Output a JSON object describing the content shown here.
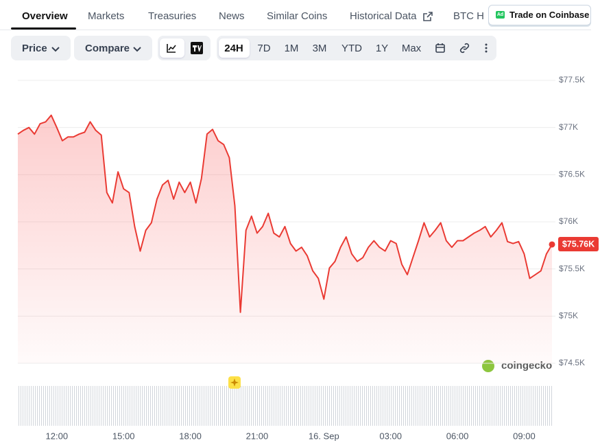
{
  "tabs": [
    "Overview",
    "Markets",
    "Treasuries",
    "News",
    "Similar Coins",
    "Historical Data",
    "BTC H"
  ],
  "ad_badge": "Ad",
  "trade_button": "Trade on Coinbase",
  "toolbar": {
    "price": "Price",
    "compare": "Compare",
    "ranges": [
      "24H",
      "7D",
      "1M",
      "3M",
      "YTD",
      "1Y",
      "Max"
    ]
  },
  "watermark": "coingecko",
  "chart_data": {
    "type": "line",
    "color": "#ea3a33",
    "grid": true,
    "ylim": [
      74500,
      77500
    ],
    "yticks": [
      {
        "value": 74500,
        "label": "$74.5K"
      },
      {
        "value": 75000,
        "label": "$75K"
      },
      {
        "value": 75500,
        "label": "$75.5K"
      },
      {
        "value": 76000,
        "label": "$76K"
      },
      {
        "value": 76500,
        "label": "$76.5K"
      },
      {
        "value": 77000,
        "label": "$77K"
      },
      {
        "value": 77500,
        "label": "$77.5K"
      }
    ],
    "last_price_label": "$75.76K",
    "categories": [
      null,
      null,
      null,
      null,
      null,
      null,
      null,
      "12:00",
      null,
      null,
      null,
      null,
      null,
      null,
      null,
      null,
      null,
      null,
      null,
      "15:00",
      null,
      null,
      null,
      null,
      null,
      null,
      null,
      null,
      null,
      null,
      null,
      "18:00",
      null,
      null,
      null,
      null,
      null,
      null,
      null,
      null,
      null,
      null,
      null,
      "21:00",
      null,
      null,
      null,
      null,
      null,
      null,
      null,
      null,
      null,
      null,
      null,
      "16. Sep",
      null,
      null,
      null,
      null,
      null,
      null,
      null,
      null,
      null,
      null,
      null,
      "03:00",
      null,
      null,
      null,
      null,
      null,
      null,
      null,
      null,
      null,
      null,
      null,
      "06:00",
      null,
      null,
      null,
      null,
      null,
      null,
      null,
      null,
      null,
      null,
      null,
      "09:00",
      null,
      null,
      null,
      null,
      null
    ],
    "values": [
      76930,
      76970,
      77000,
      76930,
      77040,
      77060,
      77130,
      77000,
      76860,
      76900,
      76900,
      76930,
      76950,
      77060,
      76970,
      76920,
      76310,
      76200,
      76530,
      76350,
      76310,
      75950,
      75690,
      75910,
      75990,
      76240,
      76390,
      76440,
      76240,
      76420,
      76310,
      76420,
      76200,
      76460,
      76930,
      76980,
      76860,
      76820,
      76680,
      76170,
      75040,
      75910,
      76060,
      75880,
      75950,
      76090,
      75880,
      75840,
      75950,
      75770,
      75690,
      75730,
      75640,
      75480,
      75400,
      75180,
      75510,
      75580,
      75730,
      75840,
      75660,
      75580,
      75620,
      75730,
      75800,
      75730,
      75690,
      75800,
      75770,
      75550,
      75440,
      75620,
      75800,
      75990,
      75840,
      75910,
      75990,
      75800,
      75730,
      75800,
      75800,
      75840,
      75880,
      75910,
      75950,
      75840,
      75910,
      75990,
      75790,
      75770,
      75790,
      75660,
      75400,
      75440,
      75480,
      75660,
      75760
    ]
  }
}
